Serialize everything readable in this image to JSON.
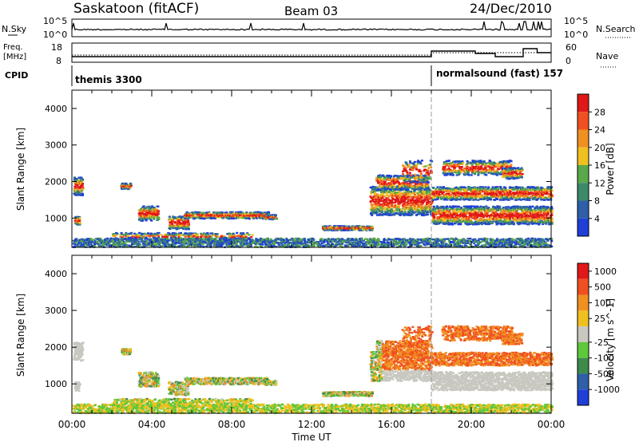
{
  "header": {
    "station": "Saskatoon (fitACF)",
    "beam": "Beam 03",
    "date": "24/Dec/2010"
  },
  "strip_labels": {
    "nsky": "N.Sky",
    "nsky_top": "10^5",
    "nsky_bot": "10^0",
    "nsearch": "N.Search",
    "nsearch_top": "10^5",
    "nsearch_bot": "10^0",
    "freq1": "Freq.",
    "freq2": "[MHz]",
    "freq_top": "18",
    "freq_bot": "8",
    "nave": "Nave",
    "nave_top": "60",
    "nave_bot": "0",
    "cpid": "CPID"
  },
  "cpid_segments": [
    {
      "label": "themis 3300",
      "start_hour": 0
    },
    {
      "label": "normalsound (fast) 157",
      "start_hour": 18
    }
  ],
  "chart_data": [
    {
      "type": "heatmap",
      "name": "power",
      "ylabel": "Slant Range [km]",
      "xlabel": "Time UT",
      "xlim": [
        0,
        24
      ],
      "ylim": [
        200,
        4500
      ],
      "colorbar_label": "Power [dB]",
      "colorbar_ticks": [
        4,
        8,
        12,
        16,
        20,
        24,
        28
      ],
      "colors": [
        "#1f3fd8",
        "#2e5fa8",
        "#3d8a6a",
        "#5aa84a",
        "#f0c020",
        "#f09020",
        "#f05020",
        "#e01818"
      ]
    },
    {
      "type": "heatmap",
      "name": "velocity",
      "ylabel": "Slant Range [km]",
      "xlabel": "Time UT",
      "xlim": [
        0,
        24
      ],
      "ylim": [
        200,
        4500
      ],
      "colorbar_label": "Velocity [m s^-1]",
      "colorbar_ticks": [
        "1000",
        "500",
        "100",
        "25",
        "-25",
        "-100",
        "-500",
        "-1000"
      ],
      "colors": [
        "#1f3fd8",
        "#2e5fa8",
        "#3d8a4a",
        "#5cc83a",
        "#c8c8c0",
        "#f0c020",
        "#f09020",
        "#f05020",
        "#e01818"
      ]
    }
  ],
  "y_ticks": [
    "1000",
    "2000",
    "3000",
    "4000"
  ],
  "x_ticks": [
    "00:00",
    "04:00",
    "08:00",
    "12:00",
    "16:00",
    "20:00",
    "00:00"
  ],
  "xlabel": "Time UT"
}
